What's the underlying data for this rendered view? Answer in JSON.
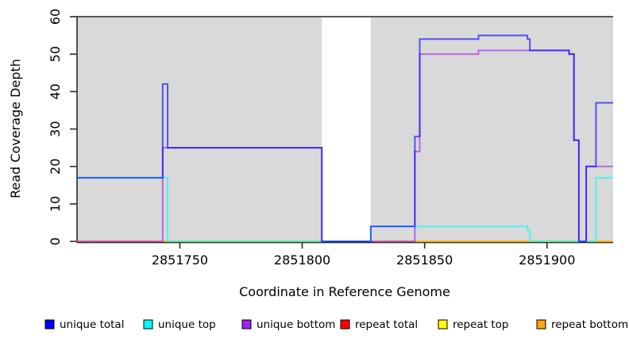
{
  "chart_data": {
    "type": "line",
    "subtype": "step-coverage",
    "title": "",
    "xlabel": "Coordinate in Reference Genome",
    "ylabel": "Read Coverage Depth",
    "xlim": [
      2851708,
      2851927
    ],
    "ylim": [
      0,
      60
    ],
    "x_ticks": [
      2851750,
      2851800,
      2851850,
      2851900
    ],
    "y_ticks": [
      0,
      10,
      20,
      30,
      40,
      50,
      60
    ],
    "grid": false,
    "legend_position": "bottom",
    "plot_background_color": "#d9d9d9",
    "masked_gap_color": "#ffffff",
    "top_border_color": "#595959",
    "background_regions": [
      {
        "from": 2851708,
        "to": 2851808
      },
      {
        "from": 2851828,
        "to": 2851927
      }
    ],
    "line_opacity": 0.62,
    "line_width": 2,
    "x_end": 2851927,
    "draw_order": [
      "repeat total",
      "repeat top",
      "repeat bottom",
      "unique bottom",
      "unique top",
      "unique total"
    ],
    "series": [
      {
        "name": "unique total",
        "color": "#0000FF",
        "steps": [
          [
            2851708,
            17
          ],
          [
            2851743,
            42
          ],
          [
            2851745,
            25
          ],
          [
            2851808,
            0
          ],
          [
            2851828,
            4
          ],
          [
            2851846,
            28
          ],
          [
            2851848,
            54
          ],
          [
            2851872,
            55
          ],
          [
            2851892,
            54
          ],
          [
            2851893,
            51
          ],
          [
            2851909,
            50
          ],
          [
            2851911,
            27
          ],
          [
            2851913,
            0
          ],
          [
            2851916,
            20
          ],
          [
            2851920,
            37
          ]
        ]
      },
      {
        "name": "unique top",
        "color": "#00FFFF",
        "steps": [
          [
            2851708,
            17
          ],
          [
            2851745,
            0
          ],
          [
            2851828,
            4
          ],
          [
            2851892,
            3
          ],
          [
            2851893,
            0
          ],
          [
            2851920,
            17
          ]
        ]
      },
      {
        "name": "unique bottom",
        "color": "#A020F0",
        "steps": [
          [
            2851708,
            0
          ],
          [
            2851743,
            25
          ],
          [
            2851808,
            0
          ],
          [
            2851846,
            24
          ],
          [
            2851848,
            50
          ],
          [
            2851872,
            51
          ],
          [
            2851909,
            50
          ],
          [
            2851911,
            27
          ],
          [
            2851913,
            0
          ],
          [
            2851916,
            20
          ]
        ]
      },
      {
        "name": "repeat total",
        "color": "#FF0000",
        "steps": [
          [
            2851708,
            0
          ]
        ]
      },
      {
        "name": "repeat top",
        "color": "#FFFF00",
        "steps": [
          [
            2851708,
            0
          ]
        ]
      },
      {
        "name": "repeat bottom",
        "color": "#FFA500",
        "steps": [
          [
            2851708,
            0
          ]
        ]
      }
    ]
  }
}
